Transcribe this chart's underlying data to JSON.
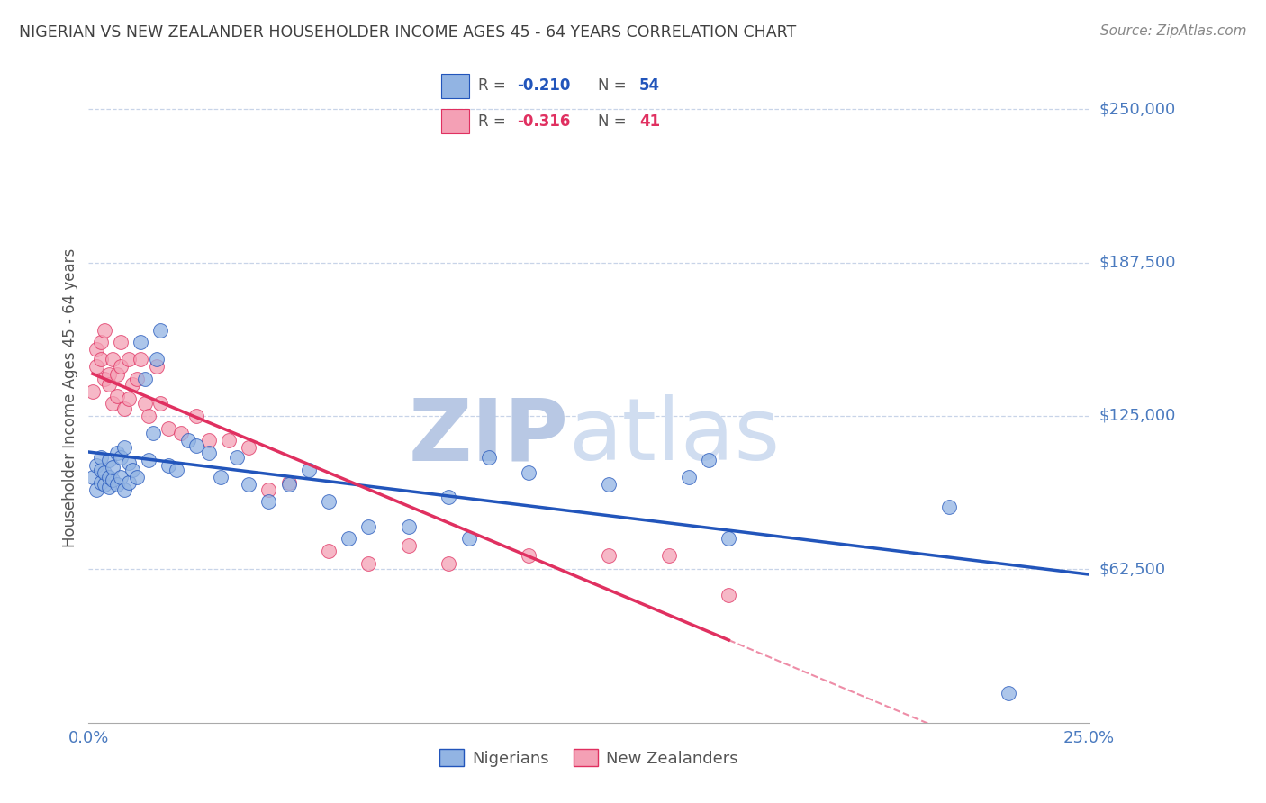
{
  "title": "NIGERIAN VS NEW ZEALANDER HOUSEHOLDER INCOME AGES 45 - 64 YEARS CORRELATION CHART",
  "source": "Source: ZipAtlas.com",
  "ylabel": "Householder Income Ages 45 - 64 years",
  "xlim": [
    0.0,
    0.25
  ],
  "ylim": [
    0,
    265000
  ],
  "blue_color": "#92b4e3",
  "pink_color": "#f4a0b5",
  "blue_line_color": "#2255bb",
  "pink_line_color": "#e03060",
  "watermark_color": "#cdd8ee",
  "grid_color": "#c8d4e8",
  "title_color": "#404040",
  "axis_label_color": "#4a7abf",
  "R_blue": -0.21,
  "N_blue": 54,
  "R_pink": -0.316,
  "N_pink": 41,
  "nigerians_x": [
    0.001,
    0.002,
    0.002,
    0.003,
    0.003,
    0.003,
    0.004,
    0.004,
    0.005,
    0.005,
    0.005,
    0.006,
    0.006,
    0.007,
    0.007,
    0.008,
    0.008,
    0.009,
    0.009,
    0.01,
    0.01,
    0.011,
    0.012,
    0.013,
    0.014,
    0.015,
    0.016,
    0.017,
    0.018,
    0.02,
    0.022,
    0.025,
    0.027,
    0.03,
    0.033,
    0.037,
    0.04,
    0.045,
    0.05,
    0.055,
    0.06,
    0.065,
    0.07,
    0.08,
    0.09,
    0.095,
    0.1,
    0.11,
    0.13,
    0.15,
    0.155,
    0.16,
    0.215,
    0.23
  ],
  "nigerians_y": [
    100000,
    95000,
    105000,
    98000,
    103000,
    108000,
    97000,
    102000,
    96000,
    100000,
    107000,
    99000,
    104000,
    97000,
    110000,
    100000,
    108000,
    95000,
    112000,
    98000,
    106000,
    103000,
    100000,
    155000,
    140000,
    107000,
    118000,
    148000,
    160000,
    105000,
    103000,
    115000,
    113000,
    110000,
    100000,
    108000,
    97000,
    90000,
    97000,
    103000,
    90000,
    75000,
    80000,
    80000,
    92000,
    75000,
    108000,
    102000,
    97000,
    100000,
    107000,
    75000,
    88000,
    12000
  ],
  "newzealanders_x": [
    0.001,
    0.002,
    0.002,
    0.003,
    0.003,
    0.004,
    0.004,
    0.005,
    0.005,
    0.006,
    0.006,
    0.007,
    0.007,
    0.008,
    0.008,
    0.009,
    0.01,
    0.01,
    0.011,
    0.012,
    0.013,
    0.014,
    0.015,
    0.017,
    0.018,
    0.02,
    0.023,
    0.027,
    0.03,
    0.035,
    0.04,
    0.045,
    0.05,
    0.06,
    0.07,
    0.08,
    0.09,
    0.11,
    0.13,
    0.145,
    0.16
  ],
  "newzealanders_y": [
    135000,
    145000,
    152000,
    148000,
    155000,
    140000,
    160000,
    138000,
    142000,
    130000,
    148000,
    133000,
    142000,
    145000,
    155000,
    128000,
    132000,
    148000,
    138000,
    140000,
    148000,
    130000,
    125000,
    145000,
    130000,
    120000,
    118000,
    125000,
    115000,
    115000,
    112000,
    95000,
    98000,
    70000,
    65000,
    72000,
    65000,
    68000,
    68000,
    68000,
    52000
  ],
  "ytick_vals": [
    62500,
    125000,
    187500,
    250000
  ],
  "ytick_labels": [
    "$62,500",
    "$125,000",
    "$187,500",
    "$250,000"
  ]
}
